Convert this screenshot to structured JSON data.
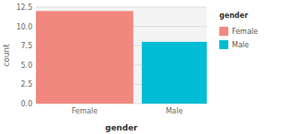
{
  "chart_data": {
    "type": "bar",
    "xlabel": "gender",
    "ylabel": "count",
    "categories": [
      "Female",
      "Male"
    ],
    "values": [
      12,
      8
    ],
    "colors": [
      "#F08880",
      "#00BCD4"
    ],
    "ylim": [
      0,
      12.5
    ],
    "yticks": [
      {
        "value": 0,
        "label": "0.0"
      },
      2.5,
      {
        "value": 5,
        "label": "5.0"
      },
      7.5,
      {
        "value": 10,
        "label": "10.0"
      },
      12.5
    ],
    "grid": true,
    "legend": "right",
    "legend_title": "gender"
  }
}
